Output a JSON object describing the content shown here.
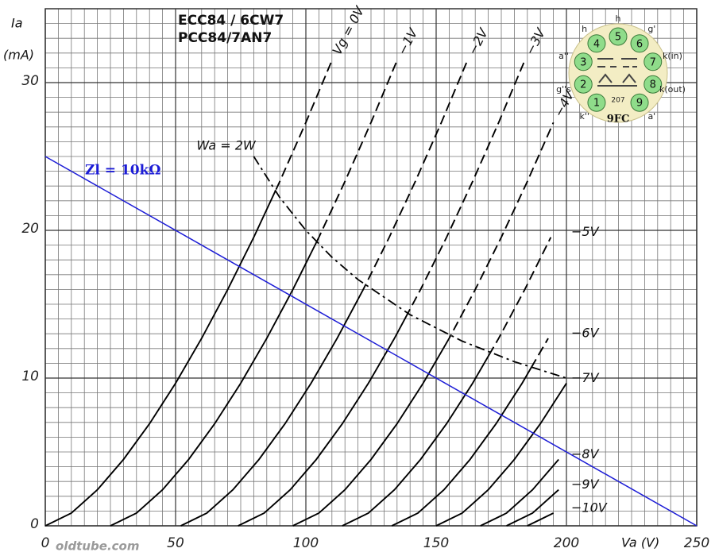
{
  "chart_data": {
    "type": "line",
    "title": "ECC84 / 6CW7",
    "subtitle": "PCC84/7AN7",
    "x_label": "Va (V)",
    "y_label": "Ia",
    "y_unit": "(mA)",
    "xlim": [
      0,
      250
    ],
    "ylim": [
      0,
      35
    ],
    "xticks": [
      0,
      50,
      100,
      150,
      200,
      250
    ],
    "yticks": [
      0,
      10,
      20,
      30
    ],
    "grid": true,
    "series": [
      {
        "name": "Vg = 0V",
        "style": "curve",
        "color": "#000000",
        "x": [
          0,
          10,
          20,
          30,
          40,
          50,
          60,
          70,
          80,
          90,
          100,
          110
        ],
        "values": [
          0,
          0.86,
          2.44,
          4.49,
          6.91,
          9.65,
          12.69,
          15.99,
          19.53,
          23.31,
          27.3,
          31.5
        ]
      },
      {
        "name": "−1V",
        "style": "curve",
        "color": "#000000",
        "x": [
          25,
          35,
          45,
          55,
          65,
          75,
          85,
          95,
          105,
          115,
          125,
          135
        ],
        "values": [
          0,
          0.86,
          2.44,
          4.49,
          6.91,
          9.65,
          12.69,
          15.99,
          19.53,
          23.31,
          27.3,
          31.5
        ]
      },
      {
        "name": "−2V",
        "style": "curve",
        "color": "#000000",
        "x": [
          52,
          62,
          72,
          82,
          92,
          102,
          112,
          122,
          132,
          142,
          152,
          162
        ],
        "values": [
          0,
          0.86,
          2.44,
          4.49,
          6.91,
          9.65,
          12.69,
          15.99,
          19.53,
          23.31,
          27.3,
          31.5
        ]
      },
      {
        "name": "−3V",
        "style": "curve",
        "color": "#000000",
        "x": [
          74,
          84,
          94,
          104,
          114,
          124,
          134,
          144,
          154,
          164,
          174,
          184
        ],
        "values": [
          0,
          0.86,
          2.44,
          4.49,
          6.91,
          9.65,
          12.69,
          15.99,
          19.53,
          23.31,
          27.3,
          31.5
        ]
      },
      {
        "name": "−4V",
        "style": "curve",
        "color": "#000000",
        "x": [
          95,
          105,
          115,
          125,
          135,
          145,
          155,
          165,
          175,
          185,
          195
        ],
        "values": [
          0,
          0.86,
          2.44,
          4.49,
          6.91,
          9.65,
          12.69,
          15.99,
          19.53,
          23.31,
          27.3
        ]
      },
      {
        "name": "−5V",
        "style": "curve",
        "color": "#000000",
        "x": [
          114,
          124,
          134,
          144,
          154,
          164,
          174,
          184,
          194
        ],
        "values": [
          0,
          0.86,
          2.44,
          4.49,
          6.91,
          9.65,
          12.69,
          15.99,
          19.53
        ]
      },
      {
        "name": "−6V",
        "style": "curve",
        "color": "#000000",
        "x": [
          133,
          143,
          153,
          163,
          173,
          183,
          193
        ],
        "values": [
          0,
          0.86,
          2.44,
          4.49,
          6.91,
          9.65,
          12.69
        ]
      },
      {
        "name": "−7V",
        "style": "curve",
        "color": "#000000",
        "x": [
          150,
          160,
          170,
          180,
          190,
          200
        ],
        "values": [
          0,
          0.86,
          2.44,
          4.49,
          6.91,
          9.65
        ]
      },
      {
        "name": "−8V",
        "style": "curve",
        "color": "#000000",
        "x": [
          167,
          177,
          187,
          197
        ],
        "values": [
          0,
          0.86,
          2.44,
          4.49
        ]
      },
      {
        "name": "−9V",
        "style": "curve",
        "color": "#000000",
        "x": [
          177,
          187,
          197
        ],
        "values": [
          0,
          0.86,
          2.44
        ]
      },
      {
        "name": "−10V",
        "style": "curve",
        "color": "#000000",
        "x": [
          185,
          195
        ],
        "values": [
          0,
          0.86
        ]
      },
      {
        "name": "Wa = 2W",
        "style": "power",
        "color": "#000000",
        "x": [
          80,
          90,
          100,
          110,
          120,
          140,
          160,
          180,
          200
        ],
        "values": [
          25,
          22.22,
          20,
          18.18,
          16.67,
          14.29,
          12.5,
          11.11,
          10
        ]
      },
      {
        "name": "Zl = 10kΩ",
        "style": "load",
        "color": "#1c1cd6",
        "x": [
          0,
          250
        ],
        "values": [
          25,
          0
        ]
      }
    ],
    "annotations": [
      "oldtube.com"
    ],
    "base": {
      "name": "9FC",
      "code": "207",
      "pins": [
        1,
        2,
        3,
        4,
        5,
        6,
        7,
        8,
        9
      ],
      "pin_labels": [
        "k''",
        "g''s",
        "a''",
        "h",
        "h",
        "g'",
        "k(in)",
        "k(out)",
        "a'"
      ]
    }
  }
}
